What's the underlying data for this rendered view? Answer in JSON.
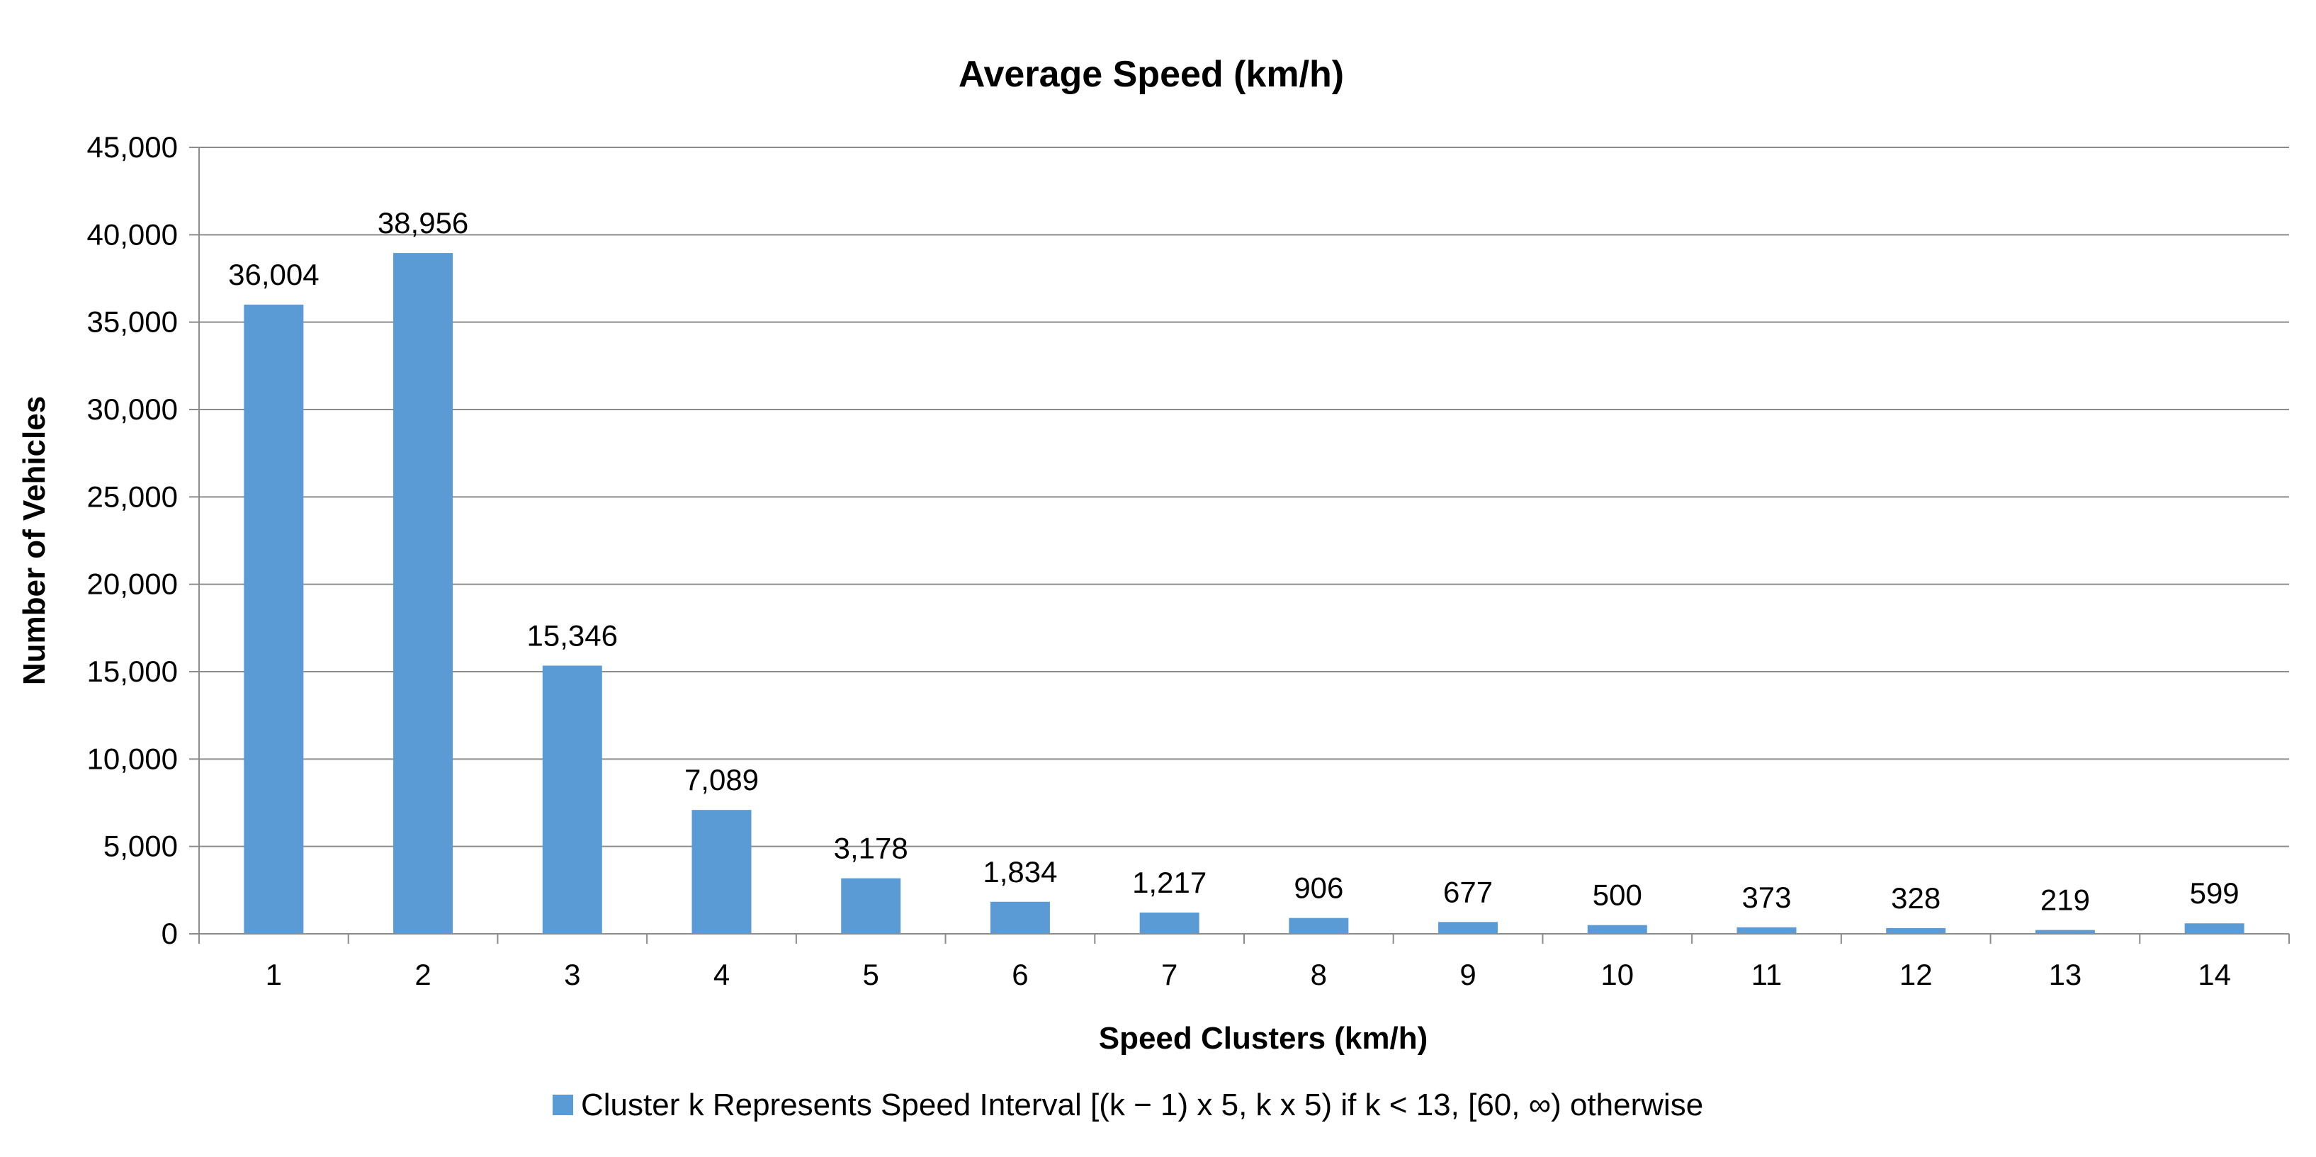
{
  "chart_data": {
    "type": "bar",
    "title": "Average Speed (km/h)",
    "xlabel": "Speed Clusters (km/h)",
    "ylabel": "Number of Vehicles",
    "categories": [
      "1",
      "2",
      "3",
      "4",
      "5",
      "6",
      "7",
      "8",
      "9",
      "10",
      "11",
      "12",
      "13",
      "14"
    ],
    "series": [
      {
        "name": "Cluster k Represents Speed Interval [(k − 1) x 5, k x 5) if k < 13, [60, ∞) otherwise",
        "values": [
          36004,
          38956,
          15346,
          7089,
          3178,
          1834,
          1217,
          906,
          677,
          500,
          373,
          328,
          219,
          599
        ],
        "data_labels": [
          "36,004",
          "38,956",
          "15,346",
          "7,089",
          "3,178",
          "1,834",
          "1,217",
          "906",
          "677",
          "500",
          "373",
          "328",
          "219",
          "599"
        ],
        "color": "#5b9bd5"
      }
    ],
    "ylim": [
      0,
      45000
    ],
    "yticks": [
      0,
      5000,
      10000,
      15000,
      20000,
      25000,
      30000,
      35000,
      40000,
      45000
    ],
    "ytick_labels": [
      "0",
      "5,000",
      "10,000",
      "15,000",
      "20,000",
      "25,000",
      "30,000",
      "35,000",
      "40,000",
      "45,000"
    ],
    "grid": true,
    "legend_position": "bottom"
  }
}
